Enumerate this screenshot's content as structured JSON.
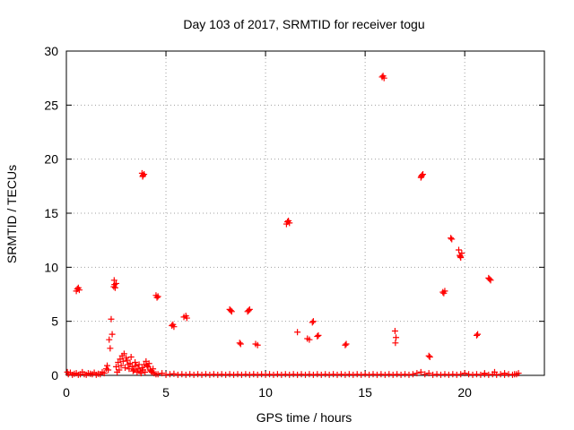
{
  "chart_data": {
    "type": "scatter",
    "title": "Day 103 of 2017, SRMTID for receiver togu",
    "xlabel": "GPS time / hours",
    "ylabel": "SRMTID / TECUs",
    "xlim": [
      0,
      24
    ],
    "ylim": [
      0,
      30
    ],
    "xticks": [
      0,
      5,
      10,
      15,
      20
    ],
    "yticks": [
      0,
      5,
      10,
      15,
      20,
      25,
      30
    ],
    "xtick_labels": [
      "0",
      "5",
      "10",
      "15",
      "20"
    ],
    "ytick_labels": [
      "0",
      "5",
      "10",
      "15",
      "20",
      "25",
      "30"
    ],
    "grid": true,
    "marker": "+",
    "color": "#ff0000",
    "series": [
      {
        "name": "SRMTID",
        "points": [
          [
            0.05,
            0.3
          ],
          [
            0.1,
            0.1
          ],
          [
            0.2,
            0.25
          ],
          [
            0.3,
            0.05
          ],
          [
            0.4,
            0.15
          ],
          [
            0.5,
            0.2
          ],
          [
            0.6,
            0.05
          ],
          [
            0.7,
            0.1
          ],
          [
            0.8,
            0.3
          ],
          [
            0.9,
            0.1
          ],
          [
            1.0,
            0.05
          ],
          [
            1.1,
            0.2
          ],
          [
            1.2,
            0.15
          ],
          [
            1.3,
            0.1
          ],
          [
            1.4,
            0.25
          ],
          [
            1.5,
            0.05
          ],
          [
            1.6,
            0.15
          ],
          [
            1.7,
            0.1
          ],
          [
            1.8,
            0.3
          ],
          [
            1.9,
            0.2
          ],
          [
            0.5,
            7.8
          ],
          [
            0.55,
            8.0
          ],
          [
            0.6,
            8.1
          ],
          [
            0.65,
            7.9
          ],
          [
            2.0,
            0.6
          ],
          [
            2.05,
            0.9
          ],
          [
            2.1,
            0.5
          ],
          [
            2.15,
            3.3
          ],
          [
            2.2,
            2.5
          ],
          [
            2.25,
            5.2
          ],
          [
            2.3,
            3.8
          ],
          [
            2.4,
            8.8
          ],
          [
            2.42,
            8.4
          ],
          [
            2.45,
            8.1
          ],
          [
            2.5,
            8.5
          ],
          [
            2.38,
            8.2
          ],
          [
            2.5,
            0.8
          ],
          [
            2.6,
            1.2
          ],
          [
            2.7,
            1.5
          ],
          [
            2.8,
            1.8
          ],
          [
            2.9,
            2.0
          ],
          [
            3.0,
            1.6
          ],
          [
            3.1,
            1.0
          ],
          [
            2.65,
            0.5
          ],
          [
            2.75,
            0.9
          ],
          [
            2.85,
            1.3
          ],
          [
            2.95,
            0.7
          ],
          [
            3.05,
            1.4
          ],
          [
            3.15,
            0.6
          ],
          [
            3.2,
            1.1
          ],
          [
            3.3,
            0.8
          ],
          [
            3.4,
            0.5
          ],
          [
            3.5,
            0.9
          ],
          [
            3.6,
            0.6
          ],
          [
            3.7,
            0.4
          ],
          [
            3.8,
            0.7
          ],
          [
            3.9,
            1.0
          ],
          [
            4.0,
            1.3
          ],
          [
            4.1,
            0.8
          ],
          [
            4.2,
            0.5
          ],
          [
            4.3,
            0.3
          ],
          [
            4.4,
            0.2
          ],
          [
            4.5,
            0.1
          ],
          [
            2.55,
            0.3
          ],
          [
            3.25,
            1.7
          ],
          [
            3.35,
            0.4
          ],
          [
            3.45,
            1.2
          ],
          [
            3.55,
            0.3
          ],
          [
            3.65,
            1.0
          ],
          [
            3.75,
            0.2
          ],
          [
            3.85,
            0.5
          ],
          [
            3.95,
            0.3
          ],
          [
            4.05,
            0.9
          ],
          [
            4.15,
            1.1
          ],
          [
            4.25,
            0.4
          ],
          [
            4.35,
            0.6
          ],
          [
            3.8,
            18.7
          ],
          [
            3.85,
            18.5
          ],
          [
            3.9,
            18.6
          ],
          [
            3.83,
            18.4
          ],
          [
            4.5,
            7.4
          ],
          [
            4.55,
            7.2
          ],
          [
            4.6,
            7.3
          ],
          [
            4.6,
            0.1
          ],
          [
            4.8,
            0.2
          ],
          [
            5.0,
            0.05
          ],
          [
            5.2,
            0.1
          ],
          [
            5.4,
            0.15
          ],
          [
            5.6,
            0.05
          ],
          [
            5.8,
            0.1
          ],
          [
            6.0,
            0.05
          ],
          [
            6.2,
            0.1
          ],
          [
            6.4,
            0.05
          ],
          [
            6.6,
            0.1
          ],
          [
            6.8,
            0.05
          ],
          [
            7.0,
            0.1
          ],
          [
            7.2,
            0.05
          ],
          [
            7.4,
            0.1
          ],
          [
            7.6,
            0.05
          ],
          [
            7.8,
            0.1
          ],
          [
            8.0,
            0.05
          ],
          [
            8.2,
            0.1
          ],
          [
            8.4,
            0.05
          ],
          [
            8.6,
            0.1
          ],
          [
            8.8,
            0.05
          ],
          [
            9.0,
            0.1
          ],
          [
            9.2,
            0.05
          ],
          [
            9.4,
            0.1
          ],
          [
            9.6,
            0.05
          ],
          [
            9.8,
            0.1
          ],
          [
            10.0,
            0.05
          ],
          [
            10.2,
            0.1
          ],
          [
            10.4,
            0.05
          ],
          [
            10.6,
            0.1
          ],
          [
            10.8,
            0.05
          ],
          [
            11.0,
            0.1
          ],
          [
            11.2,
            0.05
          ],
          [
            11.4,
            0.1
          ],
          [
            11.6,
            0.05
          ],
          [
            11.8,
            0.1
          ],
          [
            12.0,
            0.05
          ],
          [
            12.2,
            0.1
          ],
          [
            12.4,
            0.05
          ],
          [
            12.6,
            0.1
          ],
          [
            12.8,
            0.05
          ],
          [
            13.0,
            0.1
          ],
          [
            13.2,
            0.05
          ],
          [
            13.4,
            0.1
          ],
          [
            13.6,
            0.05
          ],
          [
            13.8,
            0.1
          ],
          [
            14.0,
            0.05
          ],
          [
            14.2,
            0.1
          ],
          [
            14.4,
            0.05
          ],
          [
            14.6,
            0.1
          ],
          [
            14.8,
            0.05
          ],
          [
            15.0,
            0.1
          ],
          [
            15.2,
            0.05
          ],
          [
            15.4,
            0.1
          ],
          [
            15.6,
            0.05
          ],
          [
            15.8,
            0.1
          ],
          [
            16.0,
            0.05
          ],
          [
            16.2,
            0.1
          ],
          [
            16.4,
            0.05
          ],
          [
            16.6,
            0.1
          ],
          [
            16.8,
            0.05
          ],
          [
            17.0,
            0.1
          ],
          [
            17.2,
            0.05
          ],
          [
            17.4,
            0.1
          ],
          [
            17.6,
            0.2
          ],
          [
            17.8,
            0.3
          ],
          [
            18.0,
            0.1
          ],
          [
            18.2,
            0.2
          ],
          [
            18.4,
            0.05
          ],
          [
            18.6,
            0.1
          ],
          [
            18.8,
            0.05
          ],
          [
            19.0,
            0.1
          ],
          [
            19.2,
            0.05
          ],
          [
            19.4,
            0.1
          ],
          [
            19.6,
            0.05
          ],
          [
            19.8,
            0.1
          ],
          [
            20.0,
            0.2
          ],
          [
            20.2,
            0.1
          ],
          [
            20.4,
            0.05
          ],
          [
            20.6,
            0.1
          ],
          [
            20.8,
            0.05
          ],
          [
            21.0,
            0.1
          ],
          [
            21.2,
            0.05
          ],
          [
            21.4,
            0.1
          ],
          [
            21.6,
            0.05
          ],
          [
            21.8,
            0.1
          ],
          [
            22.0,
            0.05
          ],
          [
            22.2,
            0.1
          ],
          [
            22.4,
            0.05
          ],
          [
            22.6,
            0.1
          ],
          [
            5.3,
            4.6
          ],
          [
            5.4,
            4.5
          ],
          [
            5.35,
            4.7
          ],
          [
            5.9,
            5.4
          ],
          [
            6.0,
            5.5
          ],
          [
            6.05,
            5.3
          ],
          [
            8.2,
            6.1
          ],
          [
            8.25,
            6.0
          ],
          [
            8.3,
            5.9
          ],
          [
            8.7,
            3.0
          ],
          [
            8.75,
            2.9
          ],
          [
            9.1,
            5.9
          ],
          [
            9.15,
            6.0
          ],
          [
            9.2,
            6.1
          ],
          [
            9.5,
            2.9
          ],
          [
            9.6,
            2.8
          ],
          [
            11.05,
            14.0
          ],
          [
            11.1,
            14.2
          ],
          [
            11.15,
            14.3
          ],
          [
            11.2,
            14.1
          ],
          [
            11.6,
            4.0
          ],
          [
            12.1,
            3.4
          ],
          [
            12.2,
            3.3
          ],
          [
            12.35,
            4.9
          ],
          [
            12.4,
            5.0
          ],
          [
            12.6,
            3.6
          ],
          [
            12.65,
            3.7
          ],
          [
            14.0,
            2.8
          ],
          [
            14.05,
            2.9
          ],
          [
            15.85,
            27.6
          ],
          [
            15.9,
            27.7
          ],
          [
            15.95,
            27.5
          ],
          [
            16.5,
            4.1
          ],
          [
            16.55,
            3.5
          ],
          [
            16.52,
            3.0
          ],
          [
            17.8,
            18.3
          ],
          [
            17.85,
            18.5
          ],
          [
            17.9,
            18.6
          ],
          [
            17.82,
            18.4
          ],
          [
            18.2,
            1.8
          ],
          [
            18.25,
            1.7
          ],
          [
            18.9,
            7.7
          ],
          [
            18.95,
            7.6
          ],
          [
            19.0,
            7.8
          ],
          [
            19.3,
            12.7
          ],
          [
            19.35,
            12.6
          ],
          [
            19.7,
            11.6
          ],
          [
            19.75,
            11.1
          ],
          [
            19.8,
            10.9
          ],
          [
            19.85,
            11.3
          ],
          [
            19.78,
            11.0
          ],
          [
            20.6,
            3.7
          ],
          [
            20.65,
            3.8
          ],
          [
            21.2,
            9.0
          ],
          [
            21.25,
            8.9
          ],
          [
            21.3,
            8.8
          ],
          [
            21.0,
            0.2
          ],
          [
            21.5,
            0.3
          ],
          [
            22.0,
            0.2
          ],
          [
            22.5,
            0.1
          ],
          [
            22.7,
            0.2
          ]
        ]
      }
    ]
  }
}
